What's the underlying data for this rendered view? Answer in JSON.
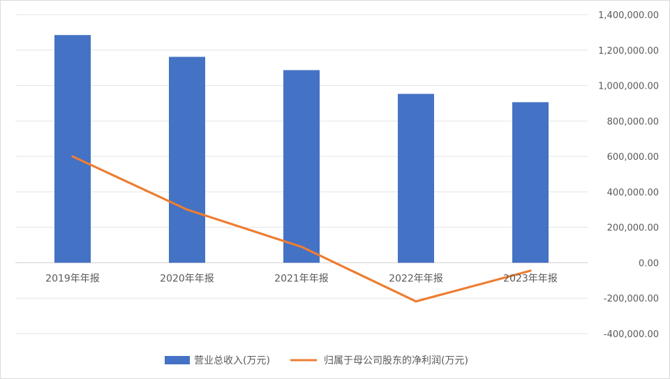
{
  "chart_data": {
    "type": "bar",
    "categories": [
      "2019年年报",
      "2020年年报",
      "2021年年报",
      "2022年年报",
      "2023年年报"
    ],
    "series": [
      {
        "name": "营业总收入(万元)",
        "type": "bar",
        "color": "#4472C4",
        "values": [
          1285000,
          1162000,
          1087000,
          953000,
          906000
        ]
      },
      {
        "name": "归属于母公司股东的净利润(万元)",
        "type": "line",
        "color": "#ED7D31",
        "values": [
          600000,
          300000,
          90000,
          -218000,
          -45000
        ]
      }
    ],
    "ylim": [
      -400000,
      1400000
    ],
    "yticks": [
      "1,400,000.00",
      "1,200,000.00",
      "1,000,000.00",
      "800,000.00",
      "600,000.00",
      "400,000.00",
      "200,000.00",
      "0.00",
      "-200,000.00",
      "-400,000.00"
    ],
    "ytick_values": [
      1400000,
      1200000,
      1000000,
      800000,
      600000,
      400000,
      200000,
      0,
      -200000,
      -400000
    ],
    "y_axis_side": "right",
    "grid": true,
    "legend_position": "bottom"
  }
}
